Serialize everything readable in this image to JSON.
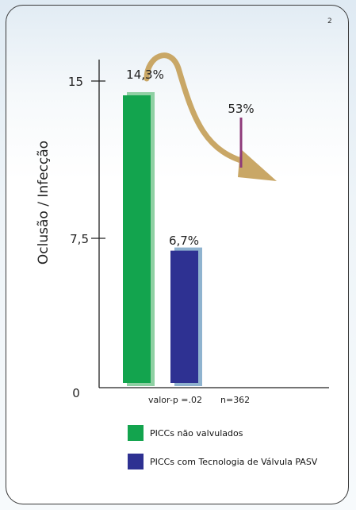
{
  "page_number": "2",
  "colors": {
    "series_1": "#13a44e",
    "series_1_shadow": "#8fd0a3",
    "series_2": "#2e3192",
    "series_2_shadow": "#8fb3cf",
    "arrow": "#c9a766",
    "line_53": "#8e3a7a",
    "axis": "#222222"
  },
  "chart_data": {
    "type": "bar",
    "ylabel": "Oclusão / Infecção",
    "yticks": [
      "0",
      "7,5",
      "15"
    ],
    "ylim": [
      0,
      15
    ],
    "series": [
      {
        "name": "PICCs não valvulados",
        "value": 14.3,
        "data_label": "14,3%"
      },
      {
        "name": "PICCs com Tecnologia de Válvula PASV",
        "value": 6.7,
        "data_label": "6,7%"
      }
    ],
    "annotations": {
      "reduction_label": "53%",
      "p_value": "valor-p =.02",
      "n": "n=362"
    },
    "legend_position": "bottom"
  }
}
